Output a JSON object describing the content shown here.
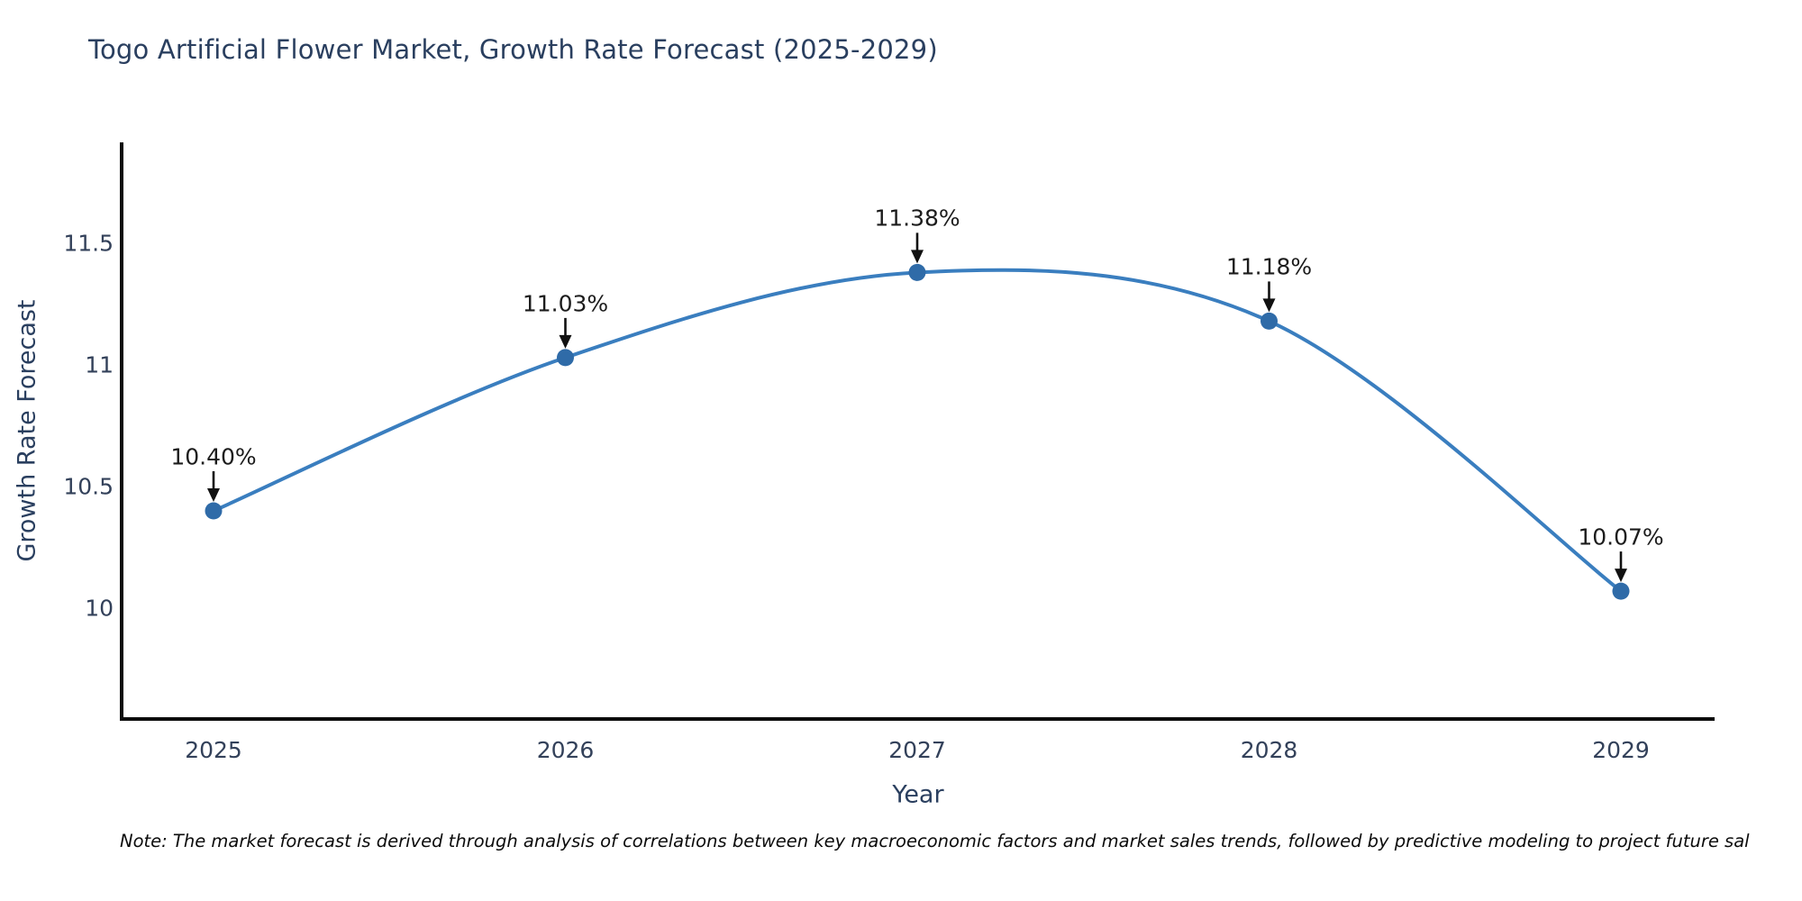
{
  "title": "Togo Artificial Flower Market, Growth Rate Forecast (2025-2029)",
  "note": "Note: The market forecast is derived through analysis of correlations between key macroeconomic factors and market sales trends, followed by predictive modeling to project future sal",
  "chart_data": {
    "type": "line",
    "title": "Togo Artificial Flower Market, Growth Rate Forecast (2025-2029)",
    "xlabel": "Year",
    "ylabel": "Growth Rate Forecast",
    "x": [
      2025,
      2026,
      2027,
      2028,
      2029
    ],
    "values": [
      10.4,
      11.03,
      11.38,
      11.18,
      10.07
    ],
    "point_labels": [
      "10.40%",
      "11.03%",
      "11.38%",
      "11.18%",
      "10.07%"
    ],
    "x_ticks": [
      "2025",
      "2026",
      "2027",
      "2028",
      "2029"
    ],
    "y_ticks": [
      "11.5",
      "11",
      "10.5",
      "10"
    ],
    "y_tick_values": [
      11.5,
      11,
      10.5,
      10
    ],
    "ylim": [
      9.55,
      11.9
    ],
    "xlim": [
      2024.74,
      2029.27
    ],
    "line_shape": "spline",
    "grid": false,
    "legend_position": "none",
    "line_color": "#3a7ebf",
    "marker_color": "#2f6ba8",
    "axis_color": "#0d0d0d",
    "annotation_arrow_color": "#111111"
  }
}
